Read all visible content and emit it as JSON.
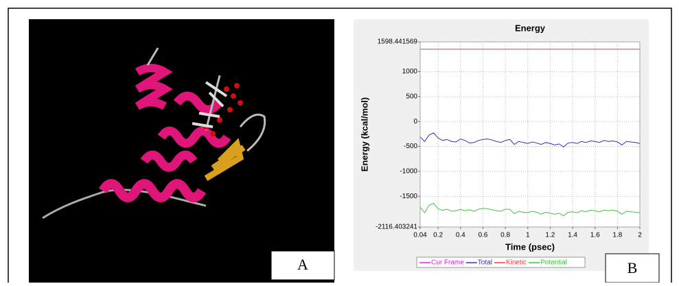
{
  "panel_labels": [
    "A",
    "B"
  ],
  "chart_data": {
    "type": "line",
    "title": "Energy",
    "x_label": "Time (psec)",
    "y_label": "Energy (kcal/mol)",
    "x": [
      0.04,
      0.08,
      0.12,
      0.16,
      0.2,
      0.24,
      0.28,
      0.32,
      0.36,
      0.4,
      0.44,
      0.48,
      0.52,
      0.56,
      0.6,
      0.64,
      0.68,
      0.72,
      0.76,
      0.8,
      0.84,
      0.88,
      0.92,
      0.96,
      1,
      1.04,
      1.08,
      1.12,
      1.16,
      1.2,
      1.24,
      1.28,
      1.32,
      1.36,
      1.4,
      1.44,
      1.48,
      1.52,
      1.56,
      1.6,
      1.64,
      1.68,
      1.72,
      1.76,
      1.8,
      1.84,
      1.88,
      1.92,
      1.96,
      2
    ],
    "series": [
      {
        "name": "Cur Frame",
        "color": "#e020e0",
        "values": [
          null,
          null,
          null,
          null,
          null,
          null,
          null,
          null,
          null,
          null,
          null,
          null,
          null,
          null,
          null,
          null,
          null,
          null,
          null,
          null,
          null,
          null,
          null,
          null,
          null,
          null,
          null,
          null,
          null,
          null,
          null,
          null,
          null,
          null,
          null,
          null,
          null,
          null,
          null,
          null,
          null,
          null,
          null,
          null,
          null,
          null,
          null,
          null,
          null,
          null
        ]
      },
      {
        "name": "Total",
        "color": "#3030b0",
        "values": [
          -310,
          -400,
          -270,
          -230,
          -330,
          -380,
          -360,
          -400,
          -410,
          -350,
          -380,
          -430,
          -420,
          -380,
          -360,
          -350,
          -370,
          -400,
          -420,
          -380,
          -360,
          -460,
          -400,
          -420,
          -440,
          -410,
          -430,
          -460,
          -420,
          -440,
          -470,
          -450,
          -510,
          -430,
          -420,
          -440,
          -400,
          -420,
          -390,
          -400,
          -420,
          -380,
          -400,
          -390,
          -410,
          -470,
          -400,
          -410,
          -420,
          -440
        ]
      },
      {
        "name": "Kinetic",
        "color": "#e04040",
        "values": [
          1450,
          1450,
          1450,
          1450,
          1450,
          1450,
          1450,
          1450,
          1450,
          1450,
          1450,
          1450,
          1450,
          1450,
          1450,
          1450,
          1450,
          1450,
          1450,
          1450,
          1450,
          1450,
          1450,
          1450,
          1450,
          1450,
          1450,
          1450,
          1450,
          1450,
          1450,
          1450,
          1450,
          1450,
          1450,
          1450,
          1450,
          1450,
          1450,
          1450,
          1450,
          1450,
          1450,
          1450,
          1450,
          1450,
          1450,
          1450,
          1450,
          1450
        ]
      },
      {
        "name": "Potential",
        "color": "#40c040",
        "values": [
          -1720,
          -1830,
          -1680,
          -1640,
          -1750,
          -1780,
          -1760,
          -1800,
          -1790,
          -1760,
          -1790,
          -1770,
          -1800,
          -1760,
          -1740,
          -1750,
          -1770,
          -1790,
          -1800,
          -1760,
          -1760,
          -1850,
          -1800,
          -1820,
          -1830,
          -1800,
          -1820,
          -1860,
          -1820,
          -1840,
          -1860,
          -1840,
          -1890,
          -1820,
          -1810,
          -1830,
          -1790,
          -1810,
          -1780,
          -1790,
          -1810,
          -1780,
          -1790,
          -1780,
          -1800,
          -1860,
          -1800,
          -1810,
          -1820,
          -1830
        ]
      }
    ],
    "xlim": [
      0.04,
      2
    ],
    "xticks": [
      0.04,
      0.2,
      0.4,
      0.6,
      0.8,
      1,
      1.2,
      1.4,
      1.6,
      1.8,
      2
    ],
    "ylim": [
      -2116.403241,
      1598.441569
    ],
    "yticks": [
      -2116.403241,
      -1500,
      -1000,
      -500,
      0,
      500,
      1000,
      1598.441569
    ],
    "grid": true
  }
}
